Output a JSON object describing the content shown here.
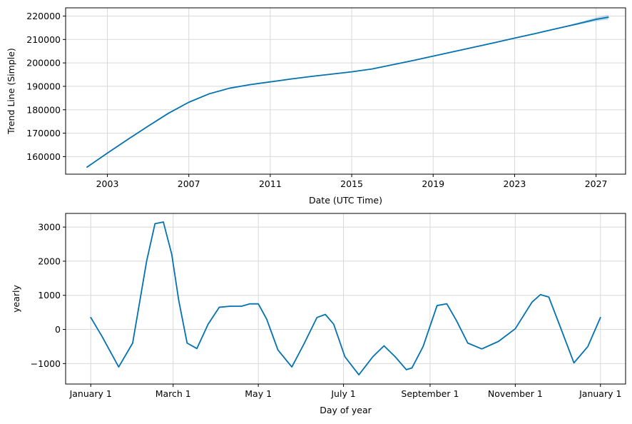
{
  "colors": {
    "line": "#0072b2",
    "band": "#0072b2",
    "grid": "#d8d8d8",
    "axis": "#000000"
  },
  "chart_data": [
    {
      "type": "line",
      "title": "",
      "xlabel": "Date (UTC Time)",
      "ylabel": "Trend Line (Simple)",
      "grid": true,
      "legend": "none",
      "xlim": [
        2000.95,
        2028.45
      ],
      "ylim": [
        152500,
        223500
      ],
      "x_ticks": [
        2003,
        2007,
        2011,
        2015,
        2019,
        2023,
        2027
      ],
      "x_tick_labels": [
        "2003",
        "2007",
        "2011",
        "2015",
        "2019",
        "2023",
        "2027"
      ],
      "y_ticks": [
        160000,
        170000,
        180000,
        190000,
        200000,
        210000,
        220000
      ],
      "y_tick_labels": [
        "160000",
        "170000",
        "180000",
        "190000",
        "200000",
        "210000",
        "220000"
      ],
      "series": [
        {
          "x": [
            2002.0,
            2003.0,
            2004.0,
            2005.0,
            2006.0,
            2007.0,
            2008.0,
            2009.0,
            2010.0,
            2011.0,
            2012.0,
            2013.0,
            2014.0,
            2015.0,
            2016.0,
            2017.0,
            2018.0,
            2019.0,
            2020.0,
            2021.0,
            2022.0,
            2023.0,
            2024.0,
            2025.0,
            2026.0,
            2027.0,
            2027.6
          ],
          "y": [
            155500,
            161500,
            167300,
            173000,
            178500,
            183200,
            186800,
            189200,
            190700,
            191900,
            193100,
            194200,
            195200,
            196200,
            197400,
            199200,
            201000,
            202900,
            204800,
            206700,
            208600,
            210600,
            212500,
            214500,
            216500,
            218600,
            219500
          ],
          "band_start": 2024.8,
          "band_half_width_end": 1000
        }
      ]
    },
    {
      "type": "line",
      "title": "",
      "xlabel": "Day of year",
      "ylabel": "yearly",
      "grid": true,
      "legend": "none",
      "xlim": [
        -18,
        383
      ],
      "ylim": [
        -1600,
        3400
      ],
      "x_ticks": [
        0,
        59,
        120,
        181,
        243,
        304,
        365
      ],
      "x_tick_labels": [
        "January 1",
        "March 1",
        "May 1",
        "July 1",
        "September 1",
        "November 1",
        "January 1"
      ],
      "y_ticks": [
        -1000,
        0,
        1000,
        2000,
        3000
      ],
      "y_tick_labels": [
        "−1000",
        "0",
        "1000",
        "2000",
        "3000"
      ],
      "series": [
        {
          "x": [
            0,
            8,
            20,
            30,
            40,
            46,
            52,
            58,
            63,
            69,
            76,
            84,
            92,
            100,
            108,
            114,
            120,
            126,
            134,
            144,
            153,
            162,
            168,
            174,
            182,
            192,
            202,
            210,
            218,
            226,
            230,
            238,
            248,
            255,
            262,
            270,
            280,
            292,
            304,
            316,
            322,
            328,
            336,
            346,
            356,
            365
          ],
          "y": [
            350,
            -200,
            -1100,
            -400,
            2000,
            3100,
            3150,
            2200,
            850,
            -400,
            -560,
            150,
            650,
            680,
            680,
            750,
            750,
            300,
            -600,
            -1100,
            -400,
            350,
            440,
            150,
            -800,
            -1330,
            -800,
            -480,
            -800,
            -1180,
            -1130,
            -500,
            700,
            750,
            250,
            -400,
            -570,
            -350,
            20,
            800,
            1020,
            950,
            100,
            -980,
            -500,
            350
          ]
        }
      ]
    }
  ]
}
